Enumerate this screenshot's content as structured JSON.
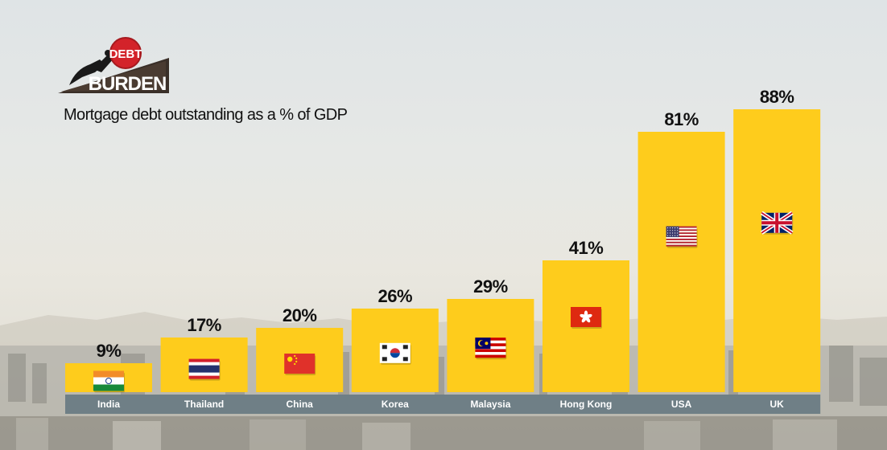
{
  "logo": {
    "top_word": "DEBT",
    "bottom_word": "BURDEN"
  },
  "chart_data": {
    "type": "bar",
    "title": "Mortgage debt outstanding as a % of GDP",
    "categories": [
      "India",
      "Thailand",
      "China",
      "Korea",
      "Malaysia",
      "Hong Kong",
      "USA",
      "UK"
    ],
    "values": [
      9,
      17,
      20,
      26,
      29,
      41,
      81,
      88
    ],
    "value_labels": [
      "9%",
      "17%",
      "20%",
      "26%",
      "29%",
      "41%",
      "81%",
      "88%"
    ],
    "flags": [
      "india-flag",
      "thailand-flag",
      "china-flag",
      "korea-flag",
      "malaysia-flag",
      "hong-kong-flag",
      "usa-flag",
      "uk-flag"
    ],
    "ylim": [
      0,
      100
    ],
    "grid": false,
    "bar_color": "#fecc1c",
    "label_band_color": "#6f7f86",
    "xlabel": "",
    "ylabel": ""
  }
}
